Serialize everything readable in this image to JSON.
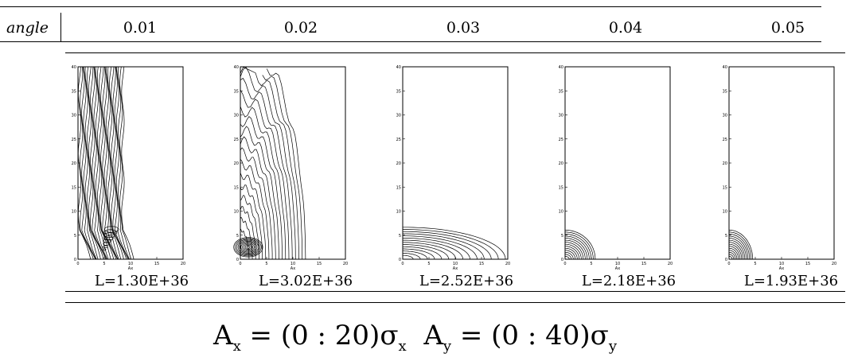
{
  "table": {
    "header_label": "angle",
    "angles": [
      "0.01",
      "0.02",
      "0.03",
      "0.04",
      "0.05"
    ],
    "luminosities": [
      "L=1.30E+36",
      "L=3.02E+36",
      "L=2.52E+36",
      "L=2.18E+36",
      "L=1.93E+36"
    ]
  },
  "formula": {
    "ax_lhs": "A",
    "ax_sub": "x",
    "ax_rhs": " = (0 : 20)σ",
    "ax_sigma_sub": "x",
    "ay_lhs": "A",
    "ay_sub": "y",
    "ay_rhs": " = (0 : 40)σ",
    "ay_sigma_sub": "y"
  },
  "plots": {
    "xlabel": "Ax",
    "y_ticks": [
      "0",
      "5",
      "10",
      "15",
      "20",
      "25",
      "30",
      "35",
      "40"
    ],
    "x_ticks": [
      "0",
      "5",
      "10",
      "15",
      "20"
    ],
    "panels": [
      {
        "style": "dense-vertical"
      },
      {
        "style": "wavy-fan"
      },
      {
        "style": "low-spread"
      },
      {
        "style": "low-blob"
      },
      {
        "style": "low-blob-small"
      }
    ]
  }
}
